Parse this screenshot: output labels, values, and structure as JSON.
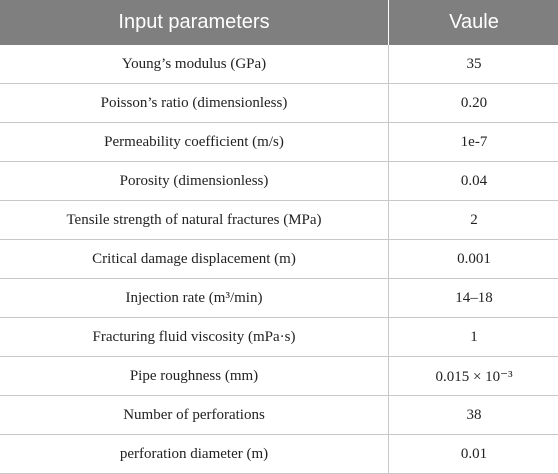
{
  "table": {
    "headers": [
      "Input parameters",
      "Vaule"
    ],
    "rows": [
      {
        "param": "Young’s modulus (GPa)",
        "value": "35"
      },
      {
        "param": "Poisson’s ratio (dimensionless)",
        "value": "0.20"
      },
      {
        "param": "Permeability coefficient (m/s)",
        "value": "1e-7"
      },
      {
        "param": "Porosity (dimensionless)",
        "value": "0.04"
      },
      {
        "param": "Tensile strength of natural fractures (MPa)",
        "value": "2"
      },
      {
        "param": "Critical damage displacement (m)",
        "value": "0.001"
      },
      {
        "param": "Injection rate (m³/min)",
        "value": "14–18"
      },
      {
        "param": "Fracturing fluid viscosity (mPa·s)",
        "value": "1"
      },
      {
        "param": "Pipe roughness (mm)",
        "value": "0.015 × 10⁻³"
      },
      {
        "param": "Number of perforations",
        "value": "38"
      },
      {
        "param": "perforation diameter (m)",
        "value": "0.01"
      }
    ]
  },
  "colors": {
    "header_bg": "#7f7f7f",
    "header_text": "#ffffff",
    "grid_line": "#c8c8c8"
  }
}
